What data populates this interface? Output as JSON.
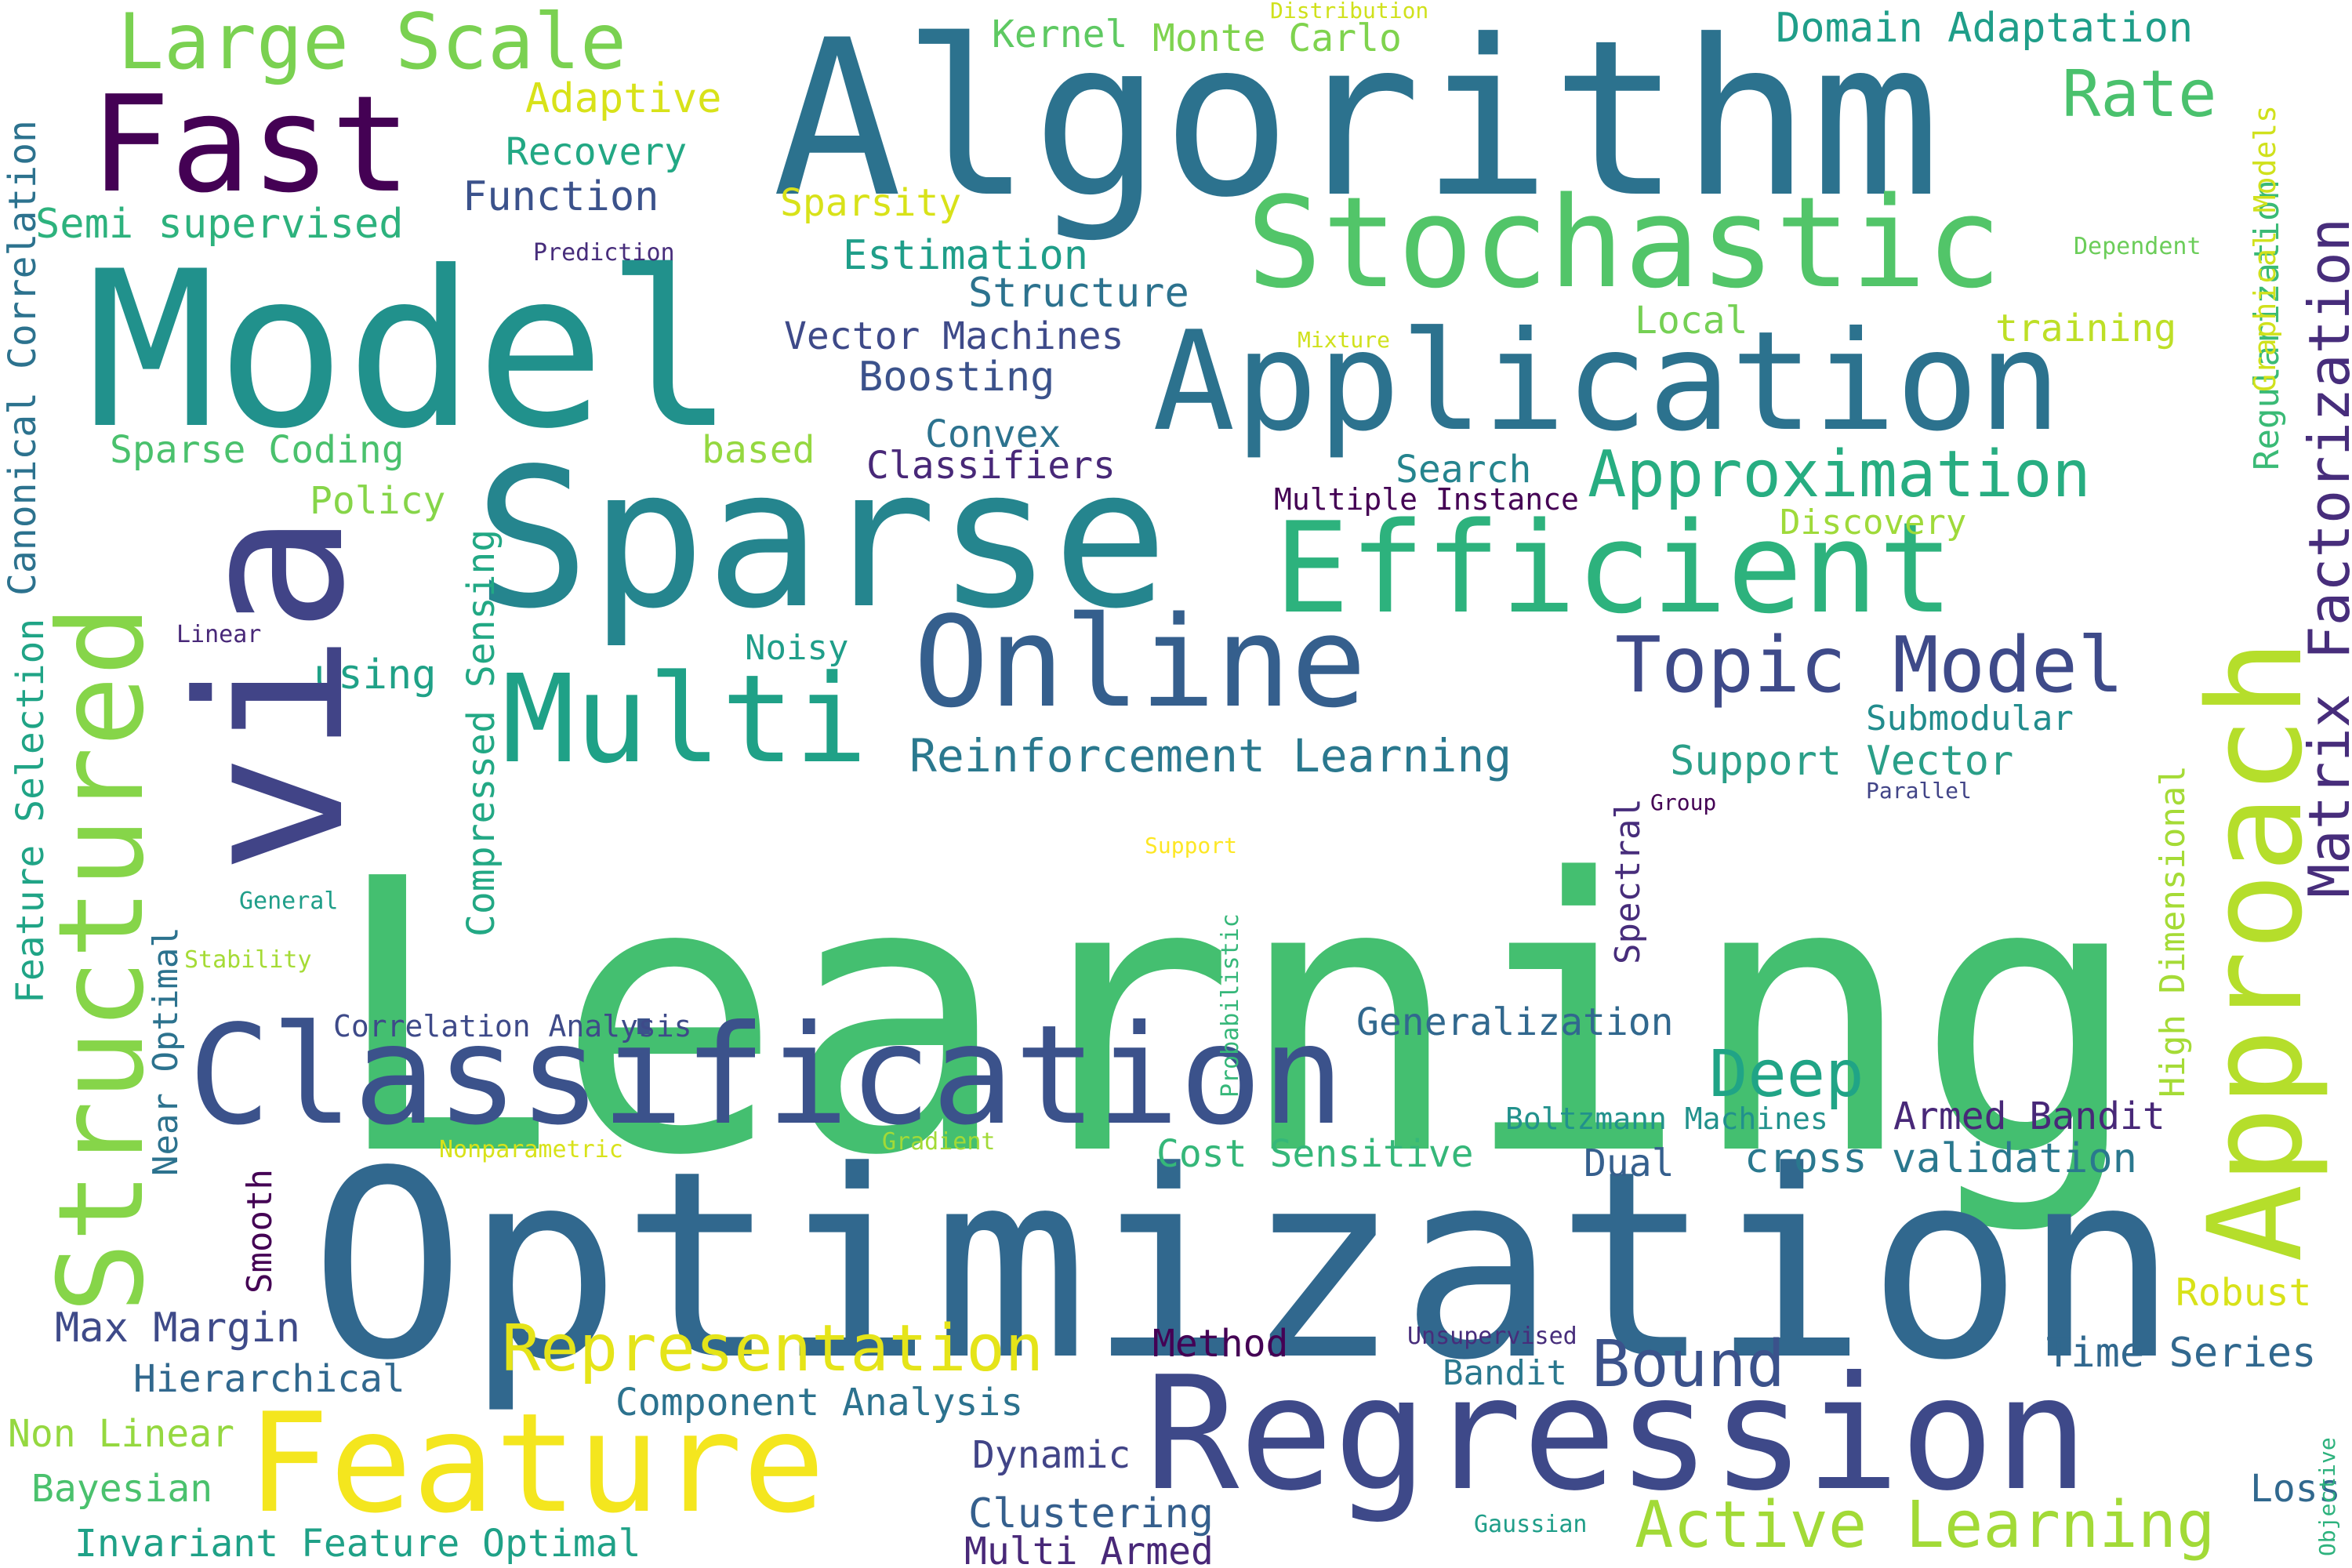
{
  "words": {
    "learning": {
      "text": "Learning",
      "color": "#44bf70"
    },
    "optimization": {
      "text": "Optimization",
      "color": "#31688e"
    },
    "algorithm": {
      "text": "Algorithm",
      "color": "#2c728e"
    },
    "model": {
      "text": "Model",
      "color": "#21918c"
    },
    "sparse": {
      "text": "Sparse",
      "color": "#25858e"
    },
    "regression": {
      "text": "Regression",
      "color": "#3e4989"
    },
    "classification": {
      "text": "Classification",
      "color": "#3b528b"
    },
    "application": {
      "text": "Application",
      "color": "#2c728e"
    },
    "stochastic": {
      "text": "Stochastic",
      "color": "#52c569"
    },
    "efficient": {
      "text": "Efficient",
      "color": "#2db27d"
    },
    "online": {
      "text": "Online",
      "color": "#355f8d"
    },
    "multi": {
      "text": "Multi",
      "color": "#1fa187"
    },
    "feature_big": {
      "text": "Feature",
      "color": "#f4e61e"
    },
    "fast": {
      "text": "Fast",
      "color": "#440154"
    },
    "via": {
      "text": "via",
      "color": "#414487"
    },
    "structured": {
      "text": "Structured",
      "color": "#86d549"
    },
    "approach": {
      "text": "Approach",
      "color": "#b5de2b"
    },
    "matrix_factorization": {
      "text": "Matrix Factorization",
      "color": "#472d7b"
    },
    "large_scale": {
      "text": "Large Scale",
      "color": "#7ad151"
    },
    "topic_model": {
      "text": "Topic Model",
      "color": "#3e4a89"
    },
    "approximation": {
      "text": "Approximation",
      "color": "#27ad81"
    },
    "representation": {
      "text": "Representation",
      "color": "#e5e419"
    },
    "bound": {
      "text": "Bound",
      "color": "#3b528b"
    },
    "active_learning": {
      "text": "Active Learning",
      "color": "#a2da37"
    },
    "deep": {
      "text": "Deep",
      "color": "#20a486"
    },
    "rate": {
      "text": "Rate",
      "color": "#4ac16d"
    },
    "reinforcement_learning": {
      "text": "Reinforcement Learning",
      "color": "#2a788e"
    },
    "domain_adaptation": {
      "text": "Domain Adaptation",
      "color": "#1f9e89"
    },
    "kernel": {
      "text": "Kernel",
      "color": "#5ec962"
    },
    "monte_carlo": {
      "text": "Monte Carlo",
      "color": "#7fd34e"
    },
    "distribution": {
      "text": "Distribution",
      "color": "#d0e11c"
    },
    "adaptive": {
      "text": "Adaptive",
      "color": "#d8e219"
    },
    "recovery": {
      "text": "Recovery",
      "color": "#22a884"
    },
    "function": {
      "text": "Function",
      "color": "#3b528b"
    },
    "sparsity": {
      "text": "Sparsity",
      "color": "#d8e219"
    },
    "semi_supervised": {
      "text": "Semi supervised",
      "color": "#2db27d"
    },
    "prediction": {
      "text": "Prediction",
      "color": "#472d7b"
    },
    "estimation": {
      "text": "Estimation",
      "color": "#1f9e89"
    },
    "structure": {
      "text": "Structure",
      "color": "#2c728e"
    },
    "vector_machines": {
      "text": "Vector Machines",
      "color": "#3e4a89"
    },
    "boosting": {
      "text": "Boosting",
      "color": "#3b528b"
    },
    "mixture": {
      "text": "Mixture",
      "color": "#d0e11c"
    },
    "local": {
      "text": "Local",
      "color": "#75d054"
    },
    "training": {
      "text": "training",
      "color": "#bddf26"
    },
    "dependent": {
      "text": "Dependent",
      "color": "#6ccd5a"
    },
    "sparse_coding": {
      "text": "Sparse Coding",
      "color": "#4ac16d"
    },
    "based": {
      "text": "based",
      "color": "#95d840"
    },
    "convex": {
      "text": "Convex",
      "color": "#2c728e"
    },
    "classifiers": {
      "text": "Classifiers",
      "color": "#482878"
    },
    "search": {
      "text": "Search",
      "color": "#25848e"
    },
    "multiple_instance": {
      "text": "Multiple Instance",
      "color": "#440154"
    },
    "policy": {
      "text": "Policy",
      "color": "#86d549"
    },
    "discovery": {
      "text": "Discovery",
      "color": "#9fda3a"
    },
    "linear": {
      "text": "Linear",
      "color": "#482878"
    },
    "noisy": {
      "text": "Noisy",
      "color": "#1f9e89"
    },
    "using": {
      "text": "using",
      "color": "#1fa187"
    },
    "submodular": {
      "text": "Submodular",
      "color": "#228c8d"
    },
    "support_vector": {
      "text": "Support Vector",
      "color": "#2a9f88"
    },
    "parallel": {
      "text": "Parallel",
      "color": "#414487"
    },
    "group": {
      "text": "Group",
      "color": "#440154"
    },
    "support": {
      "text": "Support",
      "color": "#fde725"
    },
    "general": {
      "text": "General",
      "color": "#1f9e89"
    },
    "stability": {
      "text": "Stability",
      "color": "#a5db36"
    },
    "correlation_analysis": {
      "text": "Correlation Analysis",
      "color": "#3e4a89"
    },
    "generalization": {
      "text": "Generalization",
      "color": "#31688e"
    },
    "boltzmann_machines": {
      "text": "Boltzmann Machines",
      "color": "#21918c"
    },
    "armed_bandit": {
      "text": "Armed Bandit",
      "color": "#482878"
    },
    "nonparametric": {
      "text": "Nonparametric",
      "color": "#d8e219"
    },
    "gradient": {
      "text": "Gradient",
      "color": "#a2da37"
    },
    "cost_sensitive": {
      "text": "Cost Sensitive",
      "color": "#35b779"
    },
    "dual": {
      "text": "Dual",
      "color": "#355f8d"
    },
    "cross_validation": {
      "text": "cross validation",
      "color": "#2a788e"
    },
    "robust": {
      "text": "Robust",
      "color": "#d8e219"
    },
    "max_margin": {
      "text": "Max Margin",
      "color": "#3e4a89"
    },
    "method": {
      "text": "Method",
      "color": "#440154"
    },
    "unsupervised": {
      "text": "Unsupervised",
      "color": "#472d7b"
    },
    "time_series": {
      "text": "Time Series",
      "color": "#31688e"
    },
    "hierarchical": {
      "text": "Hierarchical",
      "color": "#31688e"
    },
    "bandit": {
      "text": "Bandit",
      "color": "#2a788e"
    },
    "component_analysis": {
      "text": "Component Analysis",
      "color": "#2c728e"
    },
    "non_linear": {
      "text": "Non Linear",
      "color": "#95d840"
    },
    "dynamic": {
      "text": "Dynamic",
      "color": "#414487"
    },
    "bayesian": {
      "text": "Bayesian",
      "color": "#4ac16d"
    },
    "clustering": {
      "text": "Clustering",
      "color": "#355f8d"
    },
    "loss": {
      "text": "Loss",
      "color": "#31688e"
    },
    "invariant_feature_optimal": {
      "text": "Invariant Feature Optimal",
      "color": "#1fa187"
    },
    "multi_armed": {
      "text": "Multi Armed",
      "color": "#482878"
    },
    "gaussian": {
      "text": "Gaussian",
      "color": "#1f9e89"
    },
    "canonical_correlation": {
      "text": "Canonical Correlation",
      "color": "#2c728e"
    },
    "feature_selection": {
      "text": "Feature Selection",
      "color": "#20a486"
    },
    "near_optimal": {
      "text": "Near Optimal",
      "color": "#2c728e"
    },
    "compressed_sensing": {
      "text": "Compressed Sensing",
      "color": "#22a884"
    },
    "smooth": {
      "text": "Smooth",
      "color": "#440154"
    },
    "probabilistic": {
      "text": "Probabilistic",
      "color": "#35b779"
    },
    "spectral": {
      "text": "Spectral",
      "color": "#472d7b"
    },
    "high_dimensional": {
      "text": "High Dimensional",
      "color": "#a5db36"
    },
    "regularization": {
      "text": "Regularization",
      "color": "#3aba76"
    },
    "graphical_models": {
      "text": "Graphical Models",
      "color": "#d0e11c"
    },
    "objective": {
      "text": "Objective",
      "color": "#2db27d"
    }
  }
}
